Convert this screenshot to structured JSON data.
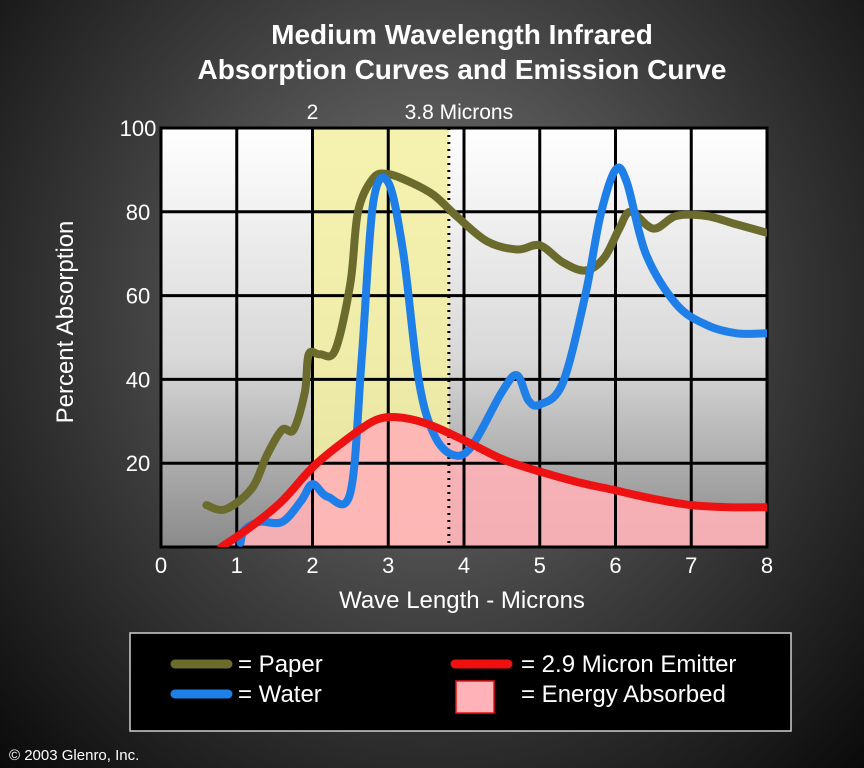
{
  "chart_data": {
    "type": "line",
    "title": [
      "Medium Wavelength Infrared",
      "Absorption Curves and Emission Curve"
    ],
    "xlabel": "Wave Length - Microns",
    "ylabel": "Percent Absorption",
    "xlim": [
      0,
      8
    ],
    "ylim": [
      0,
      100
    ],
    "x_ticks": [
      0,
      1,
      2,
      3,
      4,
      5,
      6,
      7,
      8
    ],
    "y_ticks": [
      20,
      40,
      60,
      80,
      100
    ],
    "grid": true,
    "highlight_band": {
      "from": 2,
      "to": 3.8,
      "top_labels": [
        "2",
        "3.8 Microns"
      ]
    },
    "series": [
      {
        "name": "Paper",
        "legend_label": "= Paper",
        "color": "#6b6b2e",
        "points": [
          [
            0.6,
            10
          ],
          [
            0.85,
            9
          ],
          [
            1.2,
            14
          ],
          [
            1.4,
            22
          ],
          [
            1.6,
            28
          ],
          [
            1.75,
            28
          ],
          [
            1.9,
            37
          ],
          [
            1.95,
            46
          ],
          [
            2.1,
            46
          ],
          [
            2.3,
            47
          ],
          [
            2.5,
            63
          ],
          [
            2.6,
            80
          ],
          [
            2.8,
            88
          ],
          [
            3.0,
            89
          ],
          [
            3.3,
            87
          ],
          [
            3.6,
            84
          ],
          [
            3.9,
            79
          ],
          [
            4.3,
            73
          ],
          [
            4.7,
            71
          ],
          [
            5.0,
            72
          ],
          [
            5.3,
            68
          ],
          [
            5.6,
            66
          ],
          [
            5.85,
            69
          ],
          [
            6.05,
            76
          ],
          [
            6.2,
            80
          ],
          [
            6.5,
            76
          ],
          [
            6.8,
            79
          ],
          [
            7.2,
            79
          ],
          [
            7.6,
            77
          ],
          [
            8.0,
            75
          ]
        ]
      },
      {
        "name": "Water",
        "legend_label": "= Water",
        "color": "#1f7fe8",
        "points": [
          [
            1.05,
            1
          ],
          [
            1.1,
            4
          ],
          [
            1.3,
            6
          ],
          [
            1.6,
            6
          ],
          [
            1.85,
            11
          ],
          [
            2.0,
            15
          ],
          [
            2.2,
            12
          ],
          [
            2.5,
            13
          ],
          [
            2.65,
            45
          ],
          [
            2.8,
            82
          ],
          [
            3.0,
            87
          ],
          [
            3.2,
            70
          ],
          [
            3.4,
            40
          ],
          [
            3.6,
            27
          ],
          [
            3.85,
            22
          ],
          [
            4.1,
            24
          ],
          [
            4.5,
            37
          ],
          [
            4.7,
            41
          ],
          [
            4.85,
            35
          ],
          [
            5.0,
            34
          ],
          [
            5.3,
            39
          ],
          [
            5.6,
            60
          ],
          [
            5.8,
            79
          ],
          [
            6.0,
            90
          ],
          [
            6.15,
            87
          ],
          [
            6.4,
            70
          ],
          [
            6.8,
            58
          ],
          [
            7.2,
            53
          ],
          [
            7.6,
            51
          ],
          [
            8.0,
            51
          ]
        ]
      },
      {
        "name": "2.9 Micron Emitter",
        "legend_label": "= 2.9 Micron Emitter",
        "color": "#ee1111",
        "points": [
          [
            0.8,
            0
          ],
          [
            1.2,
            5
          ],
          [
            1.6,
            11
          ],
          [
            2.0,
            19
          ],
          [
            2.4,
            25
          ],
          [
            2.8,
            30
          ],
          [
            3.1,
            31
          ],
          [
            3.5,
            29.5
          ],
          [
            4.0,
            25.5
          ],
          [
            4.5,
            21
          ],
          [
            5.0,
            18
          ],
          [
            5.5,
            15.5
          ],
          [
            6.0,
            13.5
          ],
          [
            6.5,
            11.5
          ],
          [
            7.0,
            10
          ],
          [
            7.5,
            9.5
          ],
          [
            8.0,
            9.5
          ]
        ]
      }
    ],
    "filled_area": {
      "name": "Energy Absorbed",
      "legend_label": "= Energy Absorbed",
      "under_series": "2.9 Micron Emitter",
      "color": "#ffb3b8"
    },
    "colors": {
      "band": "#f2f0a0",
      "grid": "#000000",
      "band_line": "#000000"
    }
  },
  "copyright": "© 2003 Glenro, Inc."
}
